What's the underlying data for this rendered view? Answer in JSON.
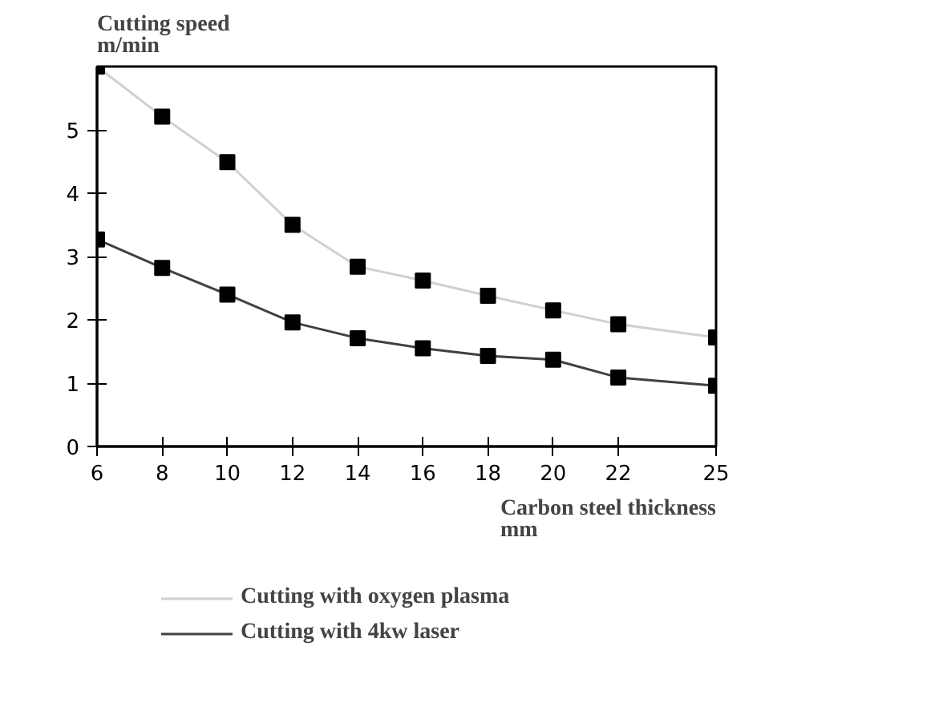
{
  "chart_data": {
    "type": "line",
    "xlabel": "Carbon steel thickness\nmm",
    "ylabel": "Cutting speed\nm/min",
    "x": [
      6,
      8,
      10,
      12,
      14,
      16,
      18,
      20,
      22,
      25
    ],
    "xlim": [
      6,
      25
    ],
    "xticks": [
      6,
      8,
      10,
      12,
      14,
      16,
      18,
      20,
      22,
      25
    ],
    "ylim": [
      0,
      6
    ],
    "yticks": [
      0,
      1,
      2,
      3,
      4,
      5
    ],
    "grid": false,
    "legend": "bottom",
    "marker": "square",
    "line_style": "solid",
    "series": [
      {
        "name": "Cutting with oxygen plasma",
        "color": "#d0d0d0",
        "values": [
          6.0,
          5.21,
          4.49,
          3.5,
          2.84,
          2.62,
          2.38,
          2.15,
          1.93,
          1.72
        ]
      },
      {
        "name": "Cutting with 4kw laser",
        "color": "#404040",
        "values": [
          3.27,
          2.82,
          2.4,
          1.96,
          1.71,
          1.55,
          1.43,
          1.37,
          1.09,
          0.96
        ]
      }
    ]
  }
}
